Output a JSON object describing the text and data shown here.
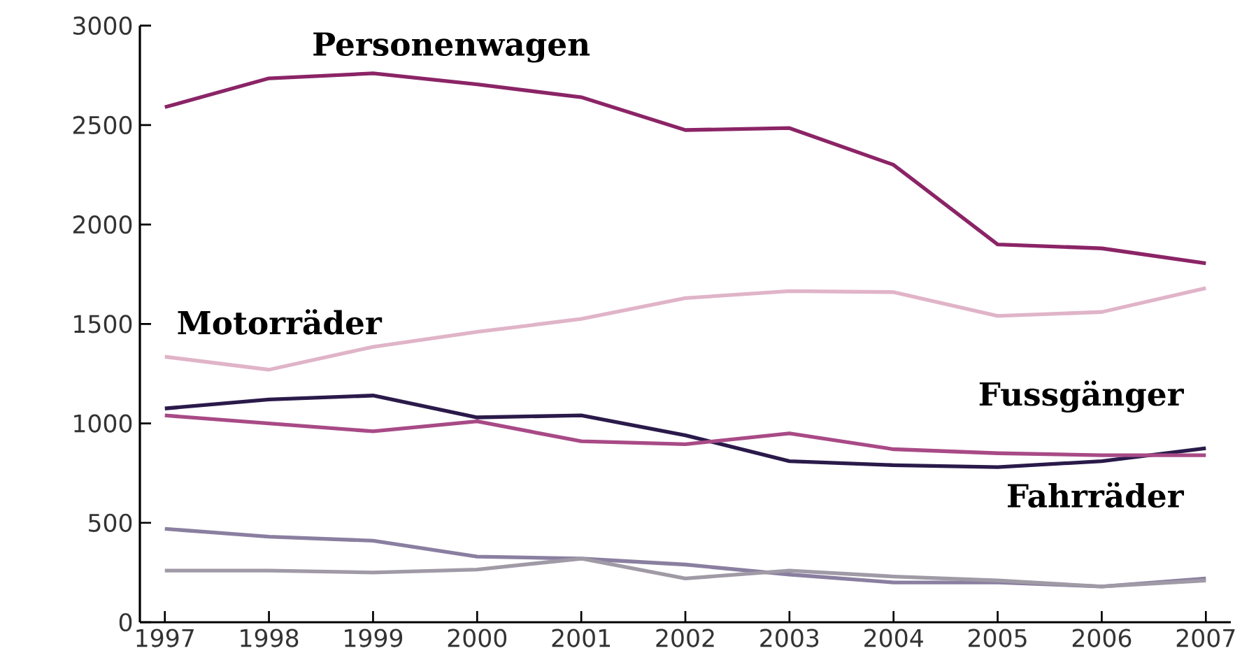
{
  "chart_data": {
    "type": "line",
    "x": [
      1997,
      1998,
      1999,
      2000,
      2001,
      2002,
      2003,
      2004,
      2005,
      2006,
      2007
    ],
    "xlim": [
      1996.76,
      2007.24
    ],
    "ylim": [
      0,
      3000
    ],
    "xticks": [
      1997,
      1998,
      1999,
      2000,
      2001,
      2002,
      2003,
      2004,
      2005,
      2006,
      2007
    ],
    "yticks": [
      0,
      500,
      1000,
      1500,
      2000,
      2500,
      3000
    ],
    "grid": false,
    "marker": "none",
    "line_style": "solid",
    "series": [
      {
        "name": "Personenwagen",
        "color": "#8b2466",
        "values": [
          2590,
          2735,
          2760,
          2705,
          2640,
          2475,
          2485,
          2300,
          1900,
          1880,
          1805
        ]
      },
      {
        "name": "Motorräder",
        "color": "#e0b4c8",
        "values": [
          1335,
          1270,
          1385,
          1460,
          1525,
          1630,
          1665,
          1660,
          1540,
          1560,
          1680
        ]
      },
      {
        "name": "Fussgänger",
        "color": "#2a1a4a",
        "values": [
          1075,
          1120,
          1140,
          1030,
          1040,
          940,
          810,
          790,
          780,
          810,
          875
        ]
      },
      {
        "name": "Fahrräder",
        "color": "#a84a86",
        "values": [
          1040,
          1000,
          960,
          1010,
          910,
          895,
          950,
          870,
          850,
          840,
          840
        ]
      },
      {
        "color": "#8a7fa0",
        "values": [
          470,
          430,
          410,
          330,
          320,
          290,
          240,
          200,
          200,
          180,
          220
        ]
      },
      {
        "color": "#a09aa6",
        "values": [
          260,
          260,
          250,
          265,
          320,
          220,
          260,
          230,
          210,
          180,
          210
        ]
      }
    ]
  }
}
